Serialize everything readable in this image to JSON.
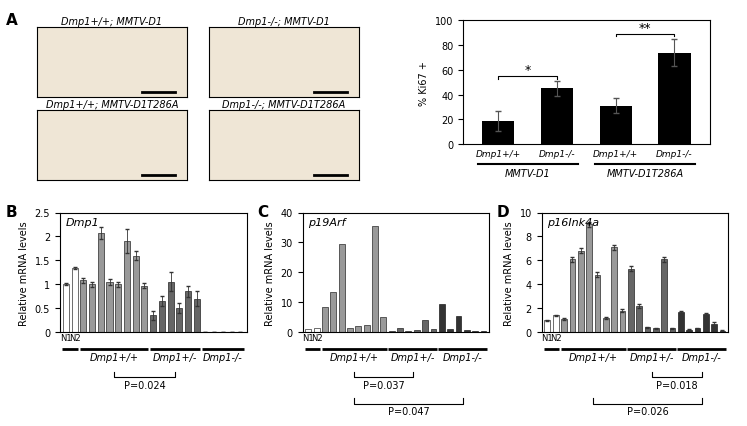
{
  "panel_labels": [
    "A",
    "B",
    "C",
    "D"
  ],
  "images": [
    {
      "label": "Dmp1+/+; MMTV-D1"
    },
    {
      "label": "Dmp1-/-; MMTV-D1"
    },
    {
      "label": "Dmp1+/+; MMTV-D1T286A"
    },
    {
      "label": "Dmp1-/-; MMTV-D1T286A"
    }
  ],
  "chart_data": [
    {
      "type": "bar",
      "ylabel": "% Ki67 +",
      "categories": [
        "Dmp1+/+",
        "Dmp1-/-",
        "Dmp1+/+",
        "Dmp1-/-"
      ],
      "values": [
        19,
        45,
        31,
        74
      ],
      "errors": [
        8,
        6,
        6,
        11
      ],
      "color": "#000000",
      "ylim": [
        0,
        100
      ],
      "yticks": [
        0,
        20,
        40,
        60,
        80,
        100
      ],
      "groups": [
        {
          "label": "MMTV-D1",
          "count": 2
        },
        {
          "label": "MMTV-D1T286A",
          "count": 2
        }
      ],
      "comparisons": [
        {
          "bars": [
            0,
            1
          ],
          "label": "*"
        },
        {
          "bars": [
            2,
            3
          ],
          "label": "**"
        }
      ]
    },
    {
      "type": "bar",
      "title": "Dmp1",
      "ylabel": "Relative mRNA levels",
      "categories": [
        "N1",
        "N2",
        null,
        null,
        null,
        null,
        null,
        null,
        null,
        null,
        null,
        null,
        null,
        null,
        null,
        null,
        null,
        null,
        null,
        null,
        null
      ],
      "values": [
        1.0,
        1.33,
        1.08,
        1.0,
        2.07,
        1.05,
        1.0,
        1.9,
        1.6,
        0.97,
        0.35,
        0.65,
        1.05,
        0.5,
        0.85,
        0.7,
        0,
        0,
        0,
        0,
        0
      ],
      "errors": [
        0.02,
        0.02,
        0.05,
        0.05,
        0.12,
        0.06,
        0.05,
        0.25,
        0.1,
        0.05,
        0.1,
        0.1,
        0.2,
        0.1,
        0.12,
        0.15,
        0,
        0,
        0,
        0,
        0
      ],
      "ylim": [
        0,
        2.5
      ],
      "yticks": [
        0,
        0.5,
        1,
        1.5,
        2,
        2.5
      ],
      "groups": [
        {
          "count": 2,
          "color": "#ffffff"
        },
        {
          "label": "Dmp1+/+",
          "count": 8,
          "color": "#999999"
        },
        {
          "label": "Dmp1+/-",
          "count": 6,
          "color": "#666666"
        },
        {
          "label": "Dmp1-/-",
          "count": 5,
          "color": "#333333"
        }
      ],
      "comparisons": [
        {
          "groups": [
            1,
            2
          ],
          "label": "P=0.024"
        }
      ]
    },
    {
      "type": "bar",
      "title": "p19Arf",
      "ylabel": "Relative mRNA levels",
      "categories": [
        "N1",
        "N2",
        null,
        null,
        null,
        null,
        null,
        null,
        null,
        null,
        null,
        null,
        null,
        null,
        null,
        null,
        null,
        null,
        null,
        null,
        null,
        null
      ],
      "values": [
        1.0,
        1.2,
        8.3,
        13.5,
        29.5,
        1.5,
        2.0,
        2.2,
        35.5,
        5.0,
        0.5,
        1.3,
        0.5,
        0.7,
        4.0,
        0.9,
        9.5,
        1.0,
        5.5,
        0.8,
        0.5,
        0.3
      ],
      "ylim": [
        0,
        40
      ],
      "yticks": [
        0,
        10,
        20,
        30,
        40
      ],
      "groups": [
        {
          "count": 2,
          "color": "#ffffff"
        },
        {
          "label": "Dmp1+/+",
          "count": 8,
          "color": "#999999"
        },
        {
          "label": "Dmp1+/-",
          "count": 6,
          "color": "#666666"
        },
        {
          "label": "Dmp1-/-",
          "count": 6,
          "color": "#333333"
        }
      ],
      "comparisons": [
        {
          "groups": [
            1,
            2
          ],
          "label": "P=0.037"
        },
        {
          "groups": [
            1,
            3
          ],
          "label": "P=0.047"
        }
      ]
    },
    {
      "type": "bar",
      "title": "p16Ink4a",
      "ylabel": "Relative mRNA levels",
      "categories": [
        "N1",
        "N2",
        null,
        null,
        null,
        null,
        null,
        null,
        null,
        null,
        null,
        null,
        null,
        null,
        null,
        null,
        null,
        null,
        null,
        null,
        null,
        null
      ],
      "values": [
        1.0,
        1.4,
        1.1,
        6.1,
        6.8,
        9.0,
        4.8,
        1.2,
        7.1,
        1.8,
        5.3,
        2.2,
        0.4,
        0.3,
        6.1,
        0.3,
        1.7,
        0.2,
        0.3,
        1.5,
        0.7,
        0.1
      ],
      "errors": [
        0.05,
        0.05,
        0.05,
        0.2,
        0.2,
        0.2,
        0.2,
        0.1,
        0.2,
        0.1,
        0.2,
        0.15,
        0.05,
        0.05,
        0.2,
        0.05,
        0.1,
        0.05,
        0.05,
        0.1,
        0.1,
        0.05
      ],
      "ylim": [
        0,
        10
      ],
      "yticks": [
        0,
        2,
        4,
        6,
        8,
        10
      ],
      "groups": [
        {
          "count": 2,
          "color": "#ffffff"
        },
        {
          "label": "Dmp1+/+",
          "count": 8,
          "color": "#999999"
        },
        {
          "label": "Dmp1+/-",
          "count": 6,
          "color": "#666666"
        },
        {
          "label": "Dmp1-/-",
          "count": 6,
          "color": "#333333"
        }
      ],
      "comparisons": [
        {
          "groups": [
            2,
            3
          ],
          "label": "P=0.018"
        },
        {
          "groups": [
            1,
            3
          ],
          "label": "P=0.026"
        }
      ]
    }
  ]
}
